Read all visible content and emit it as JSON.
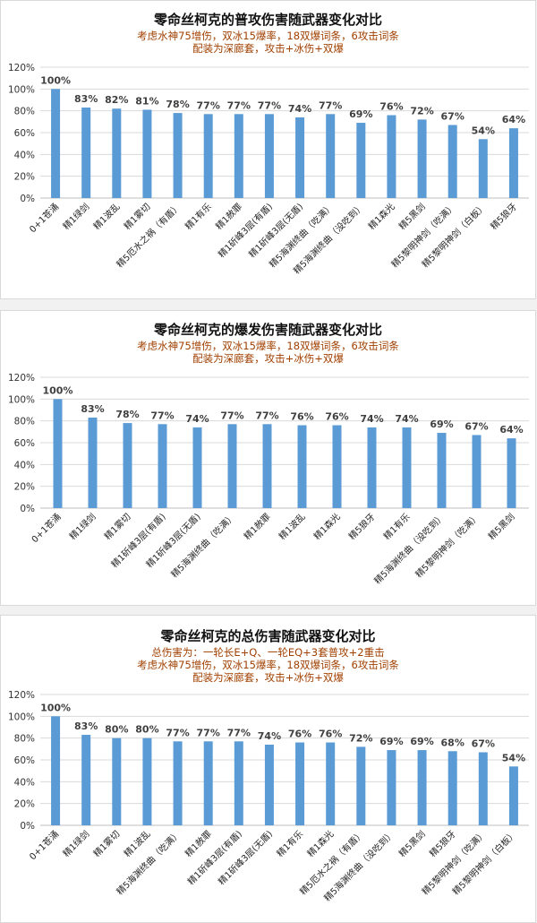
{
  "chart_data": [
    {
      "type": "bar",
      "title": "零命丝柯克的普攻伤害随武器变化对比",
      "subtitle": [
        "考虑水神75增伤，双冰15爆率，18双爆词条，6攻击词条",
        "配装为深廊套，攻击+冰伤+双爆"
      ],
      "categories": [
        "0+1苍涌",
        "精1绿剑",
        "精1波乱",
        "精1雾切",
        "精5厄水之祸（有盾）",
        "精1有乐",
        "精1赦罪",
        "精1斫峰3层(有盾)",
        "精1斫峰3层(无盾)",
        "精5海渊终曲（吃满）",
        "精5海渊终曲（没吃到）",
        "精1森光",
        "精5黑剑",
        "精5黎明神剑（吃满）",
        "精5黎明神剑（白板）",
        "精5狼牙"
      ],
      "values": [
        100,
        83,
        82,
        81,
        78,
        77,
        77,
        77,
        74,
        77,
        69,
        76,
        72,
        67,
        54,
        64
      ],
      "value_labels": [
        "100%",
        "83%",
        "82%",
        "81%",
        "78%",
        "77%",
        "77%",
        "77%",
        "74%",
        "77%",
        "69%",
        "76%",
        "72%",
        "67%",
        "54%",
        "64%"
      ],
      "ylim": [
        0,
        120
      ],
      "yticks": [
        "0%",
        "20%",
        "40%",
        "60%",
        "80%",
        "100%",
        "120%"
      ],
      "bar_color": "#5b9bd5",
      "grid": true,
      "legend": "none"
    },
    {
      "type": "bar",
      "title": "零命丝柯克的爆发伤害随武器变化对比",
      "subtitle": [
        "考虑水神75增伤，双冰15爆率，18双爆词条，6攻击词条",
        "配装为深廊套，攻击+冰伤+双爆"
      ],
      "categories": [
        "0+1苍涌",
        "精1绿剑",
        "精1雾切",
        "精1斫峰3层(有盾)",
        "精1斫峰3层(无盾)",
        "精5海渊终曲（吃满）",
        "精1赦罪",
        "精1波乱",
        "精1森光",
        "精5狼牙",
        "精1有乐",
        "精5海渊终曲（没吃到）",
        "精5黎明神剑（吃满）",
        "精5黑剑"
      ],
      "values": [
        100,
        83,
        78,
        77,
        74,
        77,
        77,
        76,
        76,
        74,
        74,
        69,
        67,
        64
      ],
      "value_labels": [
        "100%",
        "83%",
        "78%",
        "77%",
        "74%",
        "77%",
        "77%",
        "76%",
        "76%",
        "74%",
        "74%",
        "69%",
        "67%",
        "64%"
      ],
      "ylim": [
        0,
        120
      ],
      "yticks": [
        "0%",
        "20%",
        "40%",
        "60%",
        "80%",
        "100%",
        "120%"
      ],
      "bar_color": "#5b9bd5",
      "grid": true,
      "legend": "none"
    },
    {
      "type": "bar",
      "title": "零命丝柯克的总伤害随武器变化对比",
      "subtitle": [
        "总伤害为：一轮长E+Q、一轮EQ+3套普攻+2重击",
        "考虑水神75增伤，双冰15爆率，18双爆词条，6攻击词条",
        "配装为深廊套，攻击+冰伤+双爆"
      ],
      "categories": [
        "0+1苍涌",
        "精1绿剑",
        "精1雾切",
        "精1波乱",
        "精5海渊终曲（吃满）",
        "精1赦罪",
        "精1斫峰3层(有盾)",
        "精1斫峰3层(无盾)",
        "精1有乐",
        "精1森光",
        "精5厄水之祸（有盾）",
        "精5海渊终曲（没吃到）",
        "精5黑剑",
        "精5狼牙",
        "精5黎明神剑（吃满）",
        "精5黎明神剑（白板）"
      ],
      "values": [
        100,
        83,
        80,
        80,
        77,
        77,
        77,
        74,
        76,
        76,
        72,
        69,
        69,
        68,
        67,
        54
      ],
      "value_labels": [
        "100%",
        "83%",
        "80%",
        "80%",
        "77%",
        "77%",
        "77%",
        "74%",
        "76%",
        "76%",
        "72%",
        "69%",
        "69%",
        "68%",
        "67%",
        "54%"
      ],
      "ylim": [
        0,
        120
      ],
      "yticks": [
        "0%",
        "20%",
        "40%",
        "60%",
        "80%",
        "100%",
        "120%"
      ],
      "bar_color": "#5b9bd5",
      "grid": true,
      "legend": "none"
    }
  ]
}
